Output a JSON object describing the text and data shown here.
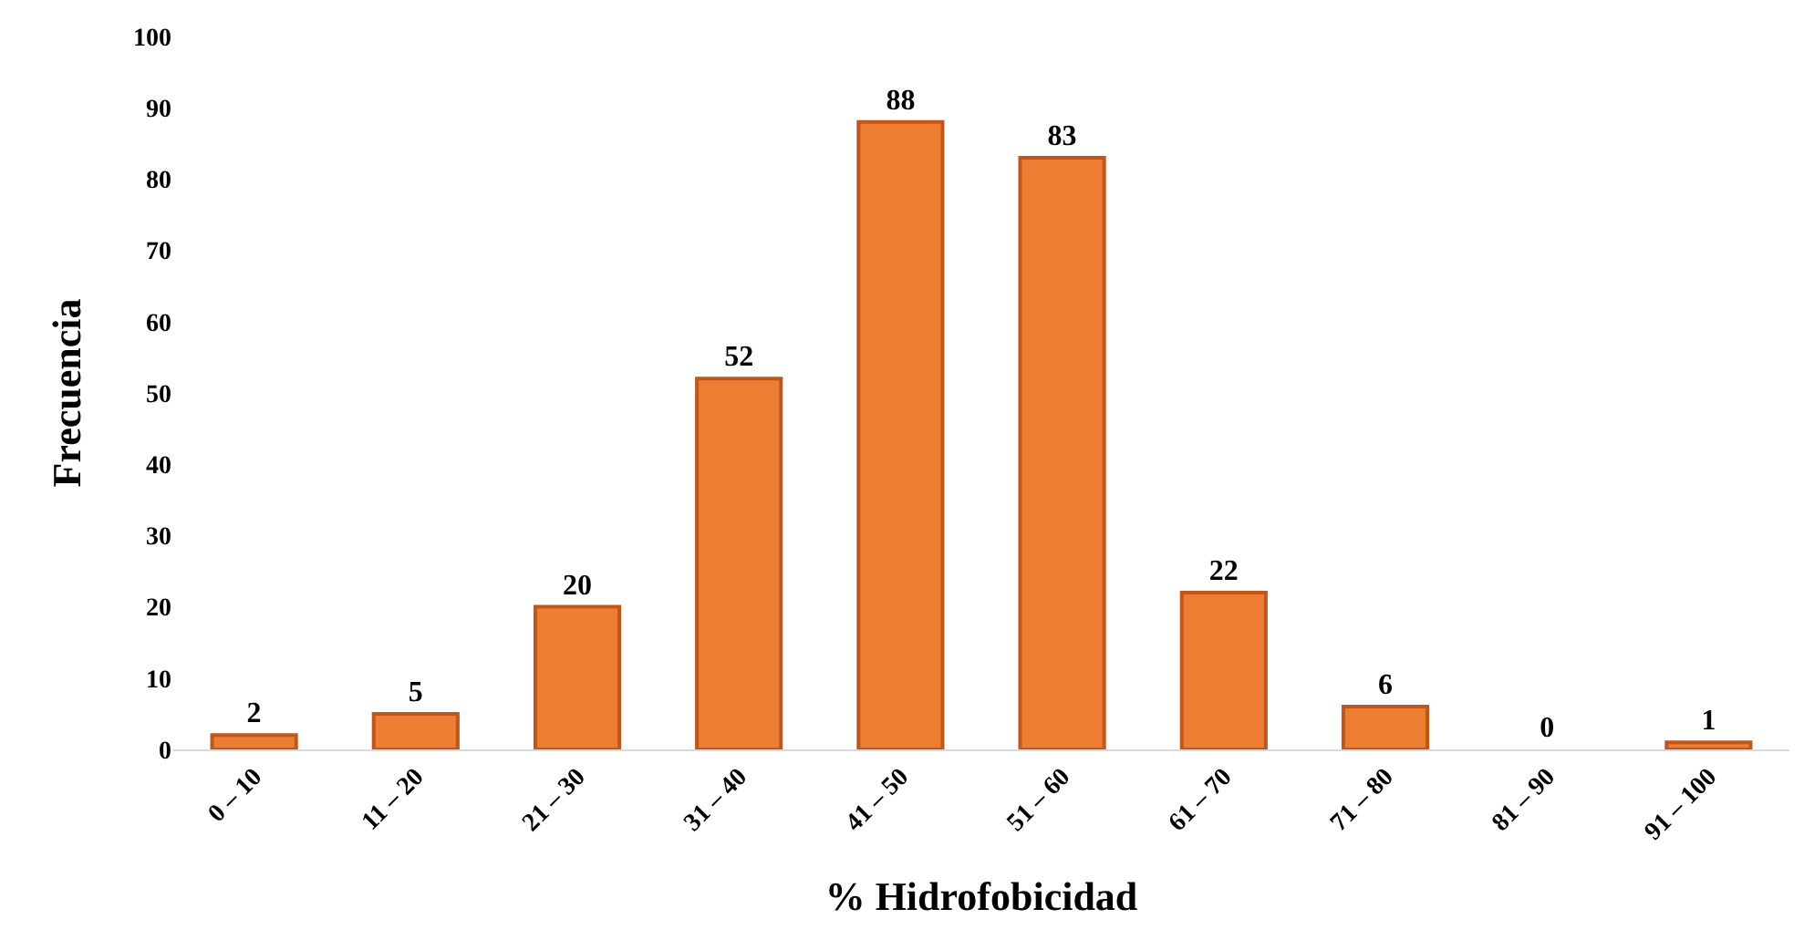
{
  "chart_data": {
    "type": "bar",
    "xlabel": "% Hidrofobicidad",
    "ylabel": "Frecuencia",
    "categories": [
      "0 – 10",
      "11 – 20",
      "21 – 30",
      "31 – 40",
      "41 – 50",
      "51 – 60",
      "61 – 70",
      "71 – 80",
      "81 – 90",
      "91 – 100"
    ],
    "values": [
      2,
      5,
      20,
      52,
      88,
      83,
      22,
      6,
      0,
      1
    ],
    "color": "#ed7d31",
    "ylim": [
      0,
      100
    ],
    "yticks": [
      0,
      10,
      20,
      30,
      40,
      50,
      60,
      70,
      80,
      90,
      100
    ],
    "data_labels": true
  }
}
